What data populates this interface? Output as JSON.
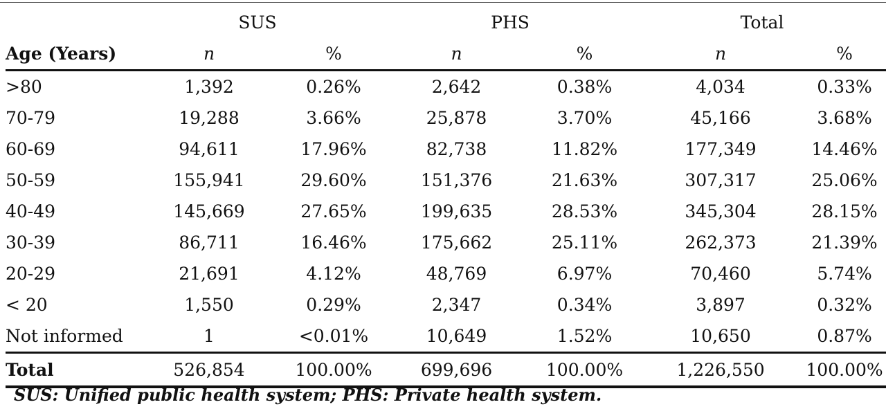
{
  "table": {
    "groups": [
      "SUS",
      "PHS",
      "Total"
    ],
    "age_header": "Age (Years)",
    "n_label": "n",
    "pct_label": "%",
    "rows": [
      {
        "age": ">80",
        "sus_n": "1,392",
        "sus_pct": "0.26%",
        "phs_n": "2,642",
        "phs_pct": "0.38%",
        "total_n": "4,034",
        "total_pct": "0.33%"
      },
      {
        "age": "70-79",
        "sus_n": "19,288",
        "sus_pct": "3.66%",
        "phs_n": "25,878",
        "phs_pct": "3.70%",
        "total_n": "45,166",
        "total_pct": "3.68%"
      },
      {
        "age": "60-69",
        "sus_n": "94,611",
        "sus_pct": "17.96%",
        "phs_n": "82,738",
        "phs_pct": "11.82%",
        "total_n": "177,349",
        "total_pct": "14.46%"
      },
      {
        "age": "50-59",
        "sus_n": "155,941",
        "sus_pct": "29.60%",
        "phs_n": "151,376",
        "phs_pct": "21.63%",
        "total_n": "307,317",
        "total_pct": "25.06%"
      },
      {
        "age": "40-49",
        "sus_n": "145,669",
        "sus_pct": "27.65%",
        "phs_n": "199,635",
        "phs_pct": "28.53%",
        "total_n": "345,304",
        "total_pct": "28.15%"
      },
      {
        "age": "30-39",
        "sus_n": "86,711",
        "sus_pct": "16.46%",
        "phs_n": "175,662",
        "phs_pct": "25.11%",
        "total_n": "262,373",
        "total_pct": "21.39%"
      },
      {
        "age": "20-29",
        "sus_n": "21,691",
        "sus_pct": "4.12%",
        "phs_n": "48,769",
        "phs_pct": "6.97%",
        "total_n": "70,460",
        "total_pct": "5.74%"
      },
      {
        "age": "< 20",
        "sus_n": "1,550",
        "sus_pct": "0.29%",
        "phs_n": "2,347",
        "phs_pct": "0.34%",
        "total_n": "3,897",
        "total_pct": "0.32%"
      },
      {
        "age": "Not informed",
        "sus_n": "1",
        "sus_pct": "<0.01%",
        "phs_n": "10,649",
        "phs_pct": "1.52%",
        "total_n": "10,650",
        "total_pct": "0.87%"
      }
    ],
    "total_row": {
      "age": "Total",
      "sus_n": "526,854",
      "sus_pct": "100.00%",
      "phs_n": "699,696",
      "phs_pct": "100.00%",
      "total_n": "1,226,550",
      "total_pct": "100.00%"
    }
  },
  "footnote": "SUS: Unified public health system; PHS: Private health system."
}
